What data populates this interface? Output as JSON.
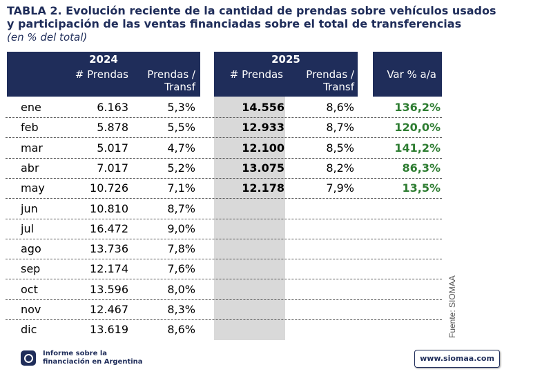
{
  "title_line1": "TABLA 2. Evolución reciente de la cantidad de prendas sobre vehículos usados",
  "title_line2": "y participación de las ventas financiadas sobre el total de transferencias",
  "subtitle": "(en % del total)",
  "header": {
    "year_2024": "2024",
    "year_2025": "2025",
    "prendas_label": "# Prendas",
    "transf_line1": "Prendas /",
    "transf_line2": "Transf",
    "var_label": "Var % a/a"
  },
  "rows": [
    {
      "mes": "ene",
      "p2024": "6.163",
      "t2024": "5,3%",
      "p2025": "14.556",
      "t2025": "8,6%",
      "var": "136,2%"
    },
    {
      "mes": "feb",
      "p2024": "5.878",
      "t2024": "5,5%",
      "p2025": "12.933",
      "t2025": "8,7%",
      "var": "120,0%"
    },
    {
      "mes": "mar",
      "p2024": "5.017",
      "t2024": "4,7%",
      "p2025": "12.100",
      "t2025": "8,5%",
      "var": "141,2%"
    },
    {
      "mes": "abr",
      "p2024": "7.017",
      "t2024": "5,2%",
      "p2025": "13.075",
      "t2025": "8,2%",
      "var": "86,3%"
    },
    {
      "mes": "may",
      "p2024": "10.726",
      "t2024": "7,1%",
      "p2025": "12.178",
      "t2025": "7,9%",
      "var": "13,5%"
    },
    {
      "mes": "jun",
      "p2024": "10.810",
      "t2024": "8,7%",
      "p2025": "",
      "t2025": "",
      "var": ""
    },
    {
      "mes": "jul",
      "p2024": "16.472",
      "t2024": "9,0%",
      "p2025": "",
      "t2025": "",
      "var": ""
    },
    {
      "mes": "ago",
      "p2024": "13.736",
      "t2024": "7,8%",
      "p2025": "",
      "t2025": "",
      "var": ""
    },
    {
      "mes": "sep",
      "p2024": "12.174",
      "t2024": "7,6%",
      "p2025": "",
      "t2025": "",
      "var": ""
    },
    {
      "mes": "oct",
      "p2024": "13.596",
      "t2024": "8,0%",
      "p2025": "",
      "t2025": "",
      "var": ""
    },
    {
      "mes": "nov",
      "p2024": "12.467",
      "t2024": "8,3%",
      "p2025": "",
      "t2025": "",
      "var": ""
    },
    {
      "mes": "dic",
      "p2024": "13.619",
      "t2024": "8,6%",
      "p2025": "",
      "t2025": "",
      "var": ""
    }
  ],
  "source": "Fuente: SIOMAA",
  "footer": {
    "logo_line1": "Informe sobre la",
    "logo_line2": "financiación en Argentina",
    "url": "www.siomaa.com"
  },
  "colors": {
    "header_bg": "#1f2d5a",
    "positive": "#2e7d32",
    "highlight_col": "#d9d9d9"
  }
}
